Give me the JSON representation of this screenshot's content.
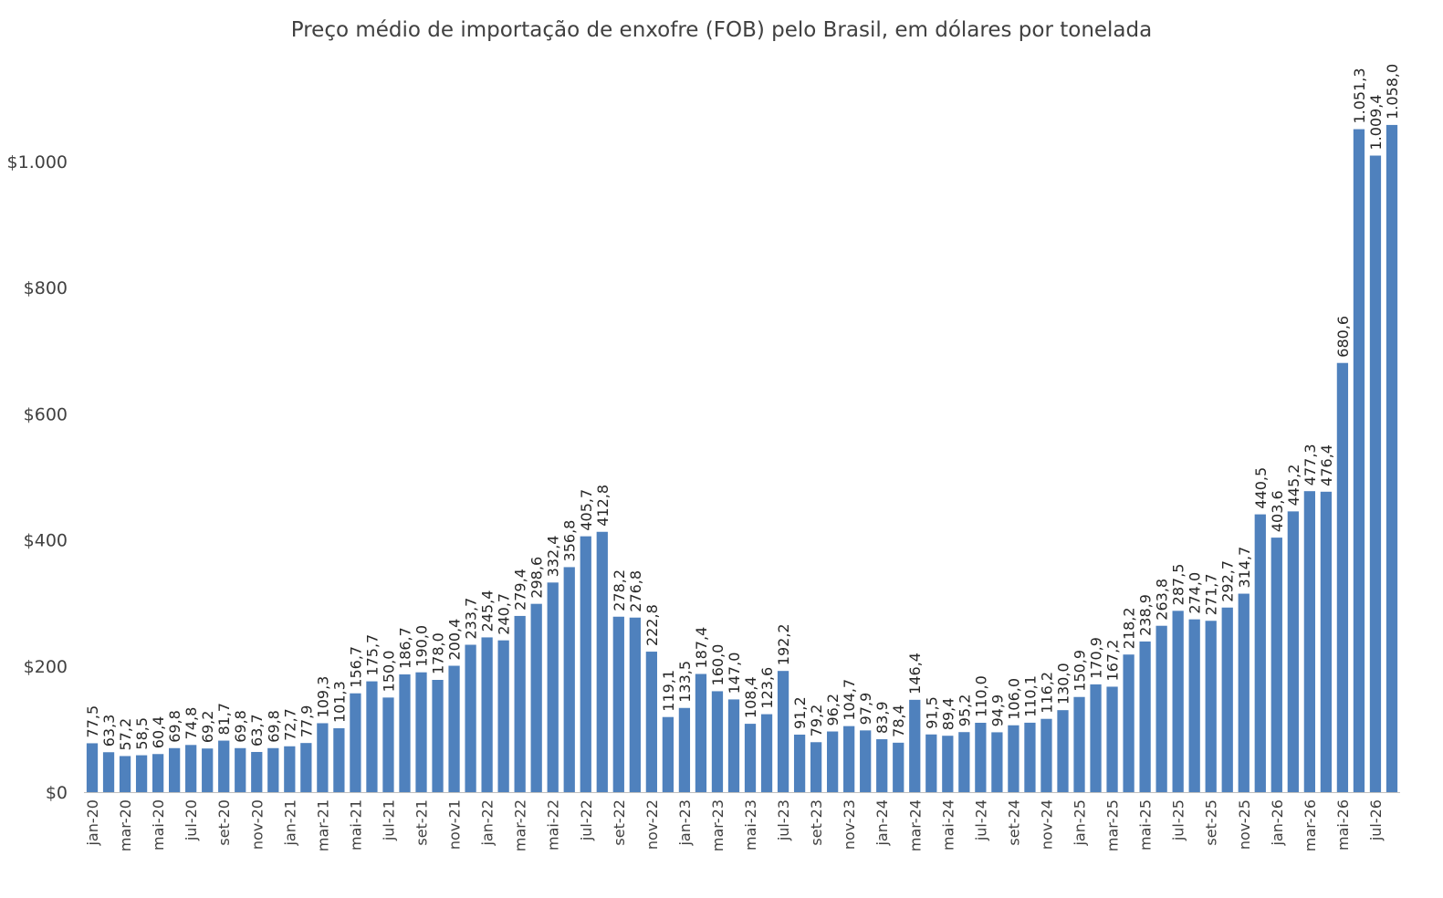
{
  "chart_data": {
    "type": "bar",
    "title": "Preço médio de importação de enxofre (FOB) pelo Brasil, em dólares por tonelada",
    "xlabel": "",
    "ylabel": "",
    "ylim": [
      0,
      1100
    ],
    "yticks": [
      0,
      200,
      400,
      600,
      800,
      1000
    ],
    "ytick_labels": [
      "$0",
      "$200",
      "$400",
      "$600",
      "$800",
      "$1.000"
    ],
    "grid": false,
    "legend": "none",
    "bar_color": "#4f81bd",
    "categories": [
      "jan-20",
      "fev-20",
      "mar-20",
      "abr-20",
      "mai-20",
      "jun-20",
      "jul-20",
      "ago-20",
      "set-20",
      "out-20",
      "nov-20",
      "dez-20",
      "jan-21",
      "fev-21",
      "mar-21",
      "abr-21",
      "mai-21",
      "jun-21",
      "jul-21",
      "ago-21",
      "set-21",
      "out-21",
      "nov-21",
      "dez-21",
      "jan-22",
      "fev-22",
      "mar-22",
      "abr-22",
      "mai-22",
      "jun-22",
      "jul-22",
      "ago-22",
      "set-22",
      "out-22",
      "nov-22",
      "dez-22",
      "jan-23",
      "fev-23",
      "mar-23",
      "abr-23",
      "mai-23",
      "jun-23",
      "jul-23",
      "ago-23",
      "set-23",
      "out-23",
      "nov-23",
      "dez-23",
      "jan-24",
      "fev-24",
      "mar-24",
      "abr-24",
      "mai-24",
      "jun-24",
      "jul-24",
      "ago-24",
      "set-24",
      "out-24",
      "nov-24",
      "dez-24",
      "jan-25",
      "fev-25",
      "mar-25",
      "abr-25",
      "mai-25",
      "jun-25",
      "jul-25",
      "ago-25",
      "set-25",
      "out-25",
      "nov-25",
      "dez-25",
      "jan-26",
      "fev-26",
      "mar-26",
      "abr-26",
      "mai-26",
      "jun-26",
      "jul-26",
      "ago-26"
    ],
    "visible_category_labels": [
      "jan-20",
      "mar-20",
      "mai-20",
      "jul-20",
      "set-20",
      "nov-20",
      "jan-21",
      "mar-21",
      "mai-21",
      "jul-21",
      "set-21",
      "nov-21",
      "jan-22",
      "mar-22",
      "mai-22",
      "jul-22",
      "set-22",
      "nov-22",
      "jan-23",
      "mar-23",
      "mai-23",
      "jul-23",
      "set-23",
      "nov-23",
      "jan-24",
      "mar-24",
      "mai-24",
      "jul-24",
      "set-24",
      "nov-24",
      "jan-25",
      "mar-25",
      "mai-25",
      "jul-25",
      "set-25",
      "nov-25",
      "jan-26",
      "mar-26",
      "mai-26",
      "jul-26"
    ],
    "values": [
      77.5,
      63.3,
      57.2,
      58.5,
      60.4,
      69.8,
      74.8,
      69.2,
      81.7,
      69.8,
      63.7,
      69.8,
      72.7,
      77.9,
      109.3,
      101.3,
      156.7,
      175.7,
      150.0,
      186.7,
      190.0,
      178.0,
      200.4,
      233.7,
      245.4,
      240.7,
      279.4,
      298.6,
      332.4,
      356.8,
      405.7,
      412.8,
      278.2,
      276.8,
      222.8,
      119.1,
      133.5,
      187.4,
      160.0,
      147.0,
      108.4,
      123.6,
      192.2,
      91.2,
      79.2,
      96.2,
      104.7,
      97.9,
      83.9,
      78.4,
      146.4,
      91.5,
      89.4,
      95.2,
      110.0,
      94.9,
      106.0,
      110.1,
      116.2,
      130.0,
      150.9,
      170.9,
      167.2,
      218.2,
      238.9,
      263.8,
      287.5,
      274.0,
      271.7,
      292.7,
      314.7,
      440.5,
      403.6,
      445.2,
      477.3,
      476.4,
      680.6,
      1051.3,
      1009.4,
      1058.0
    ],
    "value_labels": [
      "77,5",
      "63,3",
      "57,2",
      "58,5",
      "60,4",
      "69,8",
      "74,8",
      "69,2",
      "81,7",
      "69,8",
      "63,7",
      "69,8",
      "72,7",
      "77,9",
      "109,3",
      "101,3",
      "156,7",
      "175,7",
      "150,0",
      "186,7",
      "190,0",
      "178,0",
      "200,4",
      "233,7",
      "245,4",
      "240,7",
      "279,4",
      "298,6",
      "332,4",
      "356,8",
      "405,7",
      "412,8",
      "278,2",
      "276,8",
      "222,8",
      "119,1",
      "133,5",
      "187,4",
      "160,0",
      "147,0",
      "108,4",
      "123,6",
      "192,2",
      "91,2",
      "79,2",
      "96,2",
      "104,7",
      "97,9",
      "83,9",
      "78,4",
      "146,4",
      "91,5",
      "89,4",
      "95,2",
      "110,0",
      "94,9",
      "106,0",
      "110,1",
      "116,2",
      "130,0",
      "150,9",
      "170,9",
      "167,2",
      "218,2",
      "238,9",
      "263,8",
      "287,5",
      "274,0",
      "271,7",
      "292,7",
      "314,7",
      "440,5",
      "403,6",
      "445,2",
      "477,3",
      "476,4",
      "680,6",
      "1.051,3",
      "1.009,4",
      "1.058,0"
    ]
  }
}
